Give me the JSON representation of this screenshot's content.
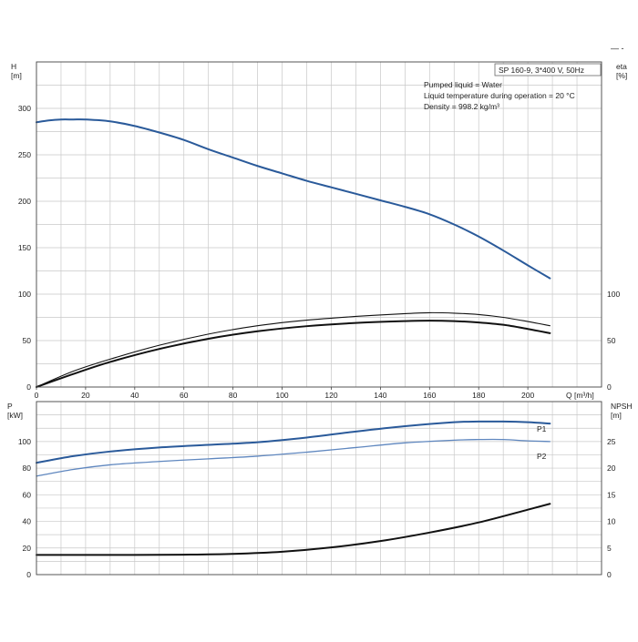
{
  "header": {
    "mark": "— -"
  },
  "info_box": {
    "model": "SP 160-9, 3*400 V, 50Hz",
    "lines": [
      "Pumped liquid = Water",
      "Liquid temperature during operation = 20 °C",
      "Density = 998.2 kg/m³"
    ]
  },
  "colors": {
    "head_curve": "#2a5a9a",
    "p1_curve": "#2a5a9a",
    "p2_curve": "#5f87bf",
    "efficiency_curves": "#111111",
    "npsh_curve": "#111111",
    "grid": "#c8c8c8"
  },
  "chart_data": [
    {
      "type": "line",
      "name": "head-efficiency",
      "xlabel": "Q [m³/h]",
      "ylabel": "H\n[m]",
      "y2label": "eta\n[%]",
      "xlim": [
        0,
        230
      ],
      "ylim": [
        0,
        350
      ],
      "y2lim": [
        0,
        350
      ],
      "xticks": [
        0,
        20,
        40,
        60,
        80,
        100,
        120,
        140,
        160,
        180,
        200
      ],
      "yticks": [
        0,
        50,
        100,
        150,
        200,
        250,
        300
      ],
      "y2ticks": [
        0,
        50,
        100
      ],
      "grid": true,
      "series": [
        {
          "axis": "left",
          "x": [
            0,
            5,
            10,
            15,
            20,
            30,
            40,
            50,
            60,
            70,
            80,
            90,
            100,
            110,
            120,
            130,
            140,
            150,
            160,
            170,
            180,
            190,
            200,
            209
          ],
          "y": [
            285,
            287,
            288,
            288,
            288,
            286,
            281,
            274,
            266,
            256,
            247,
            238,
            230,
            222,
            215,
            208,
            201,
            194,
            186,
            175,
            162,
            147,
            131,
            117
          ]
        },
        {
          "axis": "right",
          "x": [
            0,
            15,
            30,
            50,
            70,
            90,
            110,
            130,
            150,
            160,
            170,
            180,
            190,
            200,
            209
          ],
          "y": [
            0,
            17,
            30,
            45,
            57,
            66,
            72,
            76,
            79,
            80,
            79.5,
            78,
            75,
            70.5,
            66
          ]
        },
        {
          "axis": "right",
          "x": [
            0,
            15,
            30,
            50,
            70,
            90,
            110,
            130,
            150,
            160,
            170,
            180,
            190,
            200,
            209
          ],
          "y": [
            0,
            14,
            27,
            41,
            52,
            60,
            65.5,
            69,
            71,
            71.5,
            71,
            69.5,
            67,
            62.5,
            58
          ]
        }
      ]
    },
    {
      "type": "line",
      "name": "power-npsh",
      "ylabel": "P\n[kW]",
      "y2label": "NPSH\n[m]",
      "xlim": [
        0,
        230
      ],
      "ylim": [
        0,
        130
      ],
      "y2lim": [
        0,
        32.5
      ],
      "yticks": [
        0,
        20,
        40,
        60,
        80,
        100
      ],
      "y2ticks": [
        0,
        5,
        10,
        15,
        20,
        25
      ],
      "grid": true,
      "series": [
        {
          "name": "P1",
          "axis": "left",
          "x": [
            0,
            15,
            30,
            50,
            70,
            90,
            110,
            130,
            150,
            170,
            180,
            190,
            200,
            209
          ],
          "y": [
            84,
            89,
            92.5,
            95.5,
            97.5,
            99.5,
            103,
            107.5,
            111.5,
            114.5,
            115,
            115,
            114.5,
            113.5
          ]
        },
        {
          "name": "P2",
          "axis": "left",
          "x": [
            0,
            15,
            30,
            50,
            70,
            90,
            110,
            130,
            150,
            170,
            180,
            190,
            200,
            209
          ],
          "y": [
            74,
            79,
            82.5,
            85,
            87,
            89,
            92,
            95.5,
            99,
            101,
            101.5,
            101.5,
            100.5,
            100
          ]
        },
        {
          "axis": "right",
          "x": [
            0,
            20,
            40,
            60,
            80,
            100,
            120,
            140,
            160,
            180,
            200,
            209
          ],
          "y": [
            3.7,
            3.7,
            3.7,
            3.75,
            3.9,
            4.3,
            5.1,
            6.3,
            7.9,
            9.8,
            12.2,
            13.3
          ]
        }
      ]
    }
  ]
}
